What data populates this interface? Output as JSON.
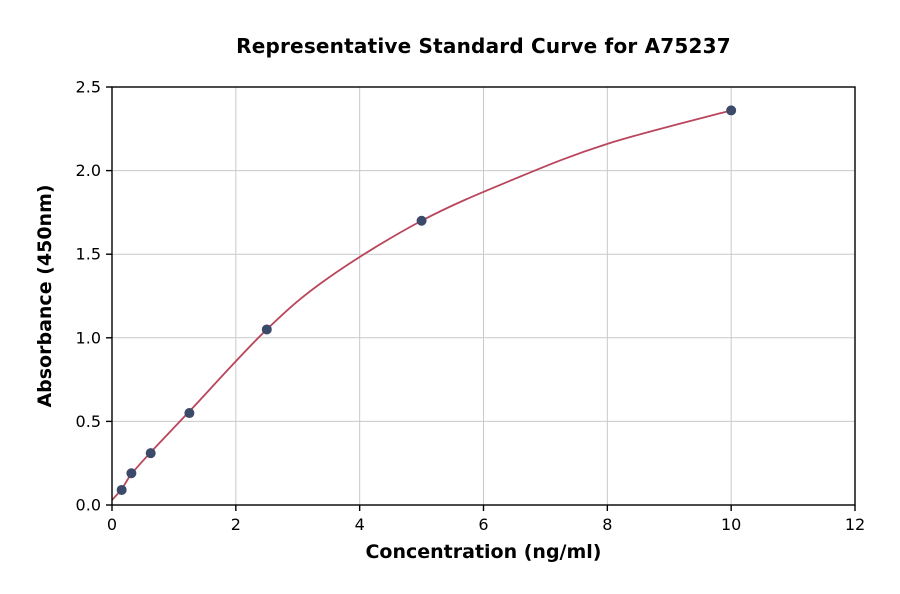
{
  "chart_data": {
    "type": "scatter",
    "title": "Representative Standard Curve for A75237",
    "xlabel": "Concentration (ng/ml)",
    "ylabel": "Absorbance (450nm)",
    "xlim": [
      0,
      12
    ],
    "ylim": [
      0,
      2.5
    ],
    "xticks": [
      0,
      2,
      4,
      6,
      8,
      10,
      12
    ],
    "xtick_labels": [
      "0",
      "2",
      "4",
      "6",
      "8",
      "10",
      "12"
    ],
    "yticks": [
      0.0,
      0.5,
      1.0,
      1.5,
      2.0,
      2.5
    ],
    "ytick_labels": [
      "0.0",
      "0.5",
      "1.0",
      "1.5",
      "2.0",
      "2.5"
    ],
    "grid": true,
    "legend_position": "none",
    "points": [
      [
        0.156,
        0.09
      ],
      [
        0.313,
        0.19
      ],
      [
        0.625,
        0.31
      ],
      [
        1.25,
        0.55
      ],
      [
        2.5,
        1.05
      ],
      [
        5,
        1.7
      ],
      [
        10,
        2.36
      ]
    ],
    "curve_points": [
      [
        0,
        0.03
      ],
      [
        0.156,
        0.095
      ],
      [
        0.313,
        0.185
      ],
      [
        0.625,
        0.315
      ],
      [
        1.25,
        0.56
      ],
      [
        2.5,
        1.05
      ],
      [
        3.5,
        1.36
      ],
      [
        5,
        1.7
      ],
      [
        6.5,
        1.95
      ],
      [
        8,
        2.16
      ],
      [
        10,
        2.36
      ]
    ],
    "colors": {
      "point": "#3a4a68",
      "curve": "#b9465c",
      "grid": "#c9c9c9",
      "axis": "#000000",
      "background": "#ffffff"
    }
  }
}
